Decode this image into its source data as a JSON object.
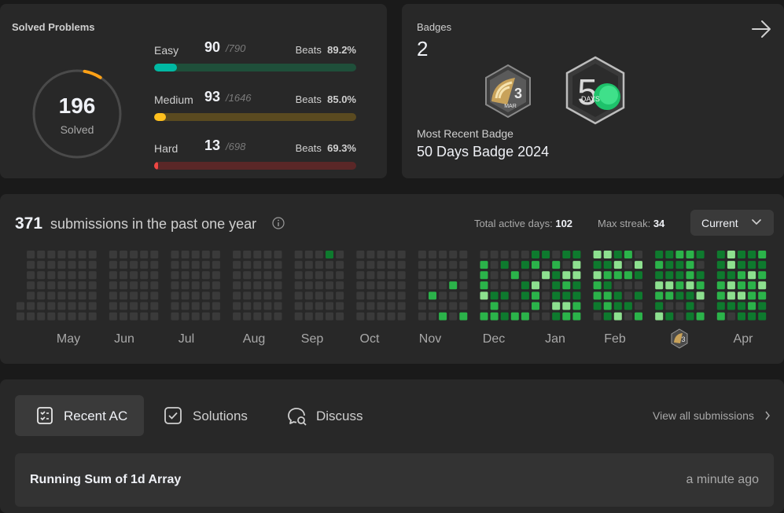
{
  "solved": {
    "title": "Solved Problems",
    "count": "196",
    "count_label": "Solved",
    "ring_fraction": 0.063,
    "difficulties": [
      {
        "name": "Easy",
        "count": "90",
        "total": "/790",
        "beats_label": "Beats",
        "beats": "89.2%",
        "fill_fraction": 0.114,
        "color": "#00b8a3",
        "track": "#1f4f3a"
      },
      {
        "name": "Medium",
        "count": "93",
        "total": "/1646",
        "beats_label": "Beats",
        "beats": "85.0%",
        "fill_fraction": 0.057,
        "color": "#ffc01e",
        "track": "#5a4a20"
      },
      {
        "name": "Hard",
        "count": "13",
        "total": "/698",
        "beats_label": "Beats",
        "beats": "69.3%",
        "fill_fraction": 0.019,
        "color": "#ef4743",
        "track": "#5a2727"
      }
    ]
  },
  "badges": {
    "title": "Badges",
    "count": "2",
    "mar_badge_num": "3",
    "mar_badge_month": "MAR",
    "days_badge_num": "5",
    "days_badge_text": "DAYS",
    "recent_label": "Most Recent Badge",
    "recent_name": "50 Days Badge 2024"
  },
  "submissions": {
    "count": "371",
    "text": "submissions in the past one year",
    "active_days_label": "Total active days:",
    "active_days": "102",
    "max_streak_label": "Max streak:",
    "max_streak": "34",
    "year_select": "Current",
    "months": [
      "May",
      "Jun",
      "Jul",
      "Aug",
      "Sep",
      "Oct",
      "Nov",
      "Dec",
      "Jan",
      "Feb",
      "Apr"
    ],
    "mar_marker_num": "3"
  },
  "recent": {
    "tabs": [
      "Recent AC",
      "Solutions",
      "Discuss"
    ],
    "view_all": "View all submissions",
    "items": [
      {
        "title": "Running Sum of 1d Array",
        "time": "a minute ago"
      }
    ]
  },
  "colors": {
    "card": "#282828",
    "bg": "#1a1a1a",
    "cell_empty": "#3a3a3a",
    "green_dark": "#0e7a2e",
    "green_mid": "#2bb34a",
    "green_light": "#8de08f"
  }
}
